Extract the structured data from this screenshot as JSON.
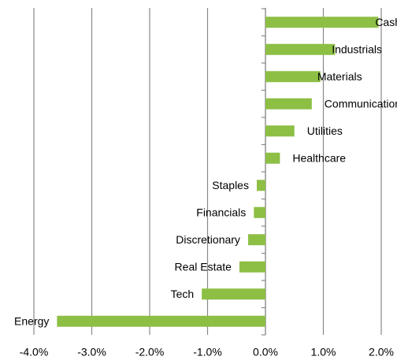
{
  "chart_data": {
    "type": "hbar",
    "categories": [
      "Cash",
      "Industrials",
      "Materials",
      "Communication Services",
      "Utilities",
      "Healthcare",
      "Staples",
      "Financials",
      "Discretionary",
      "Real Estate",
      "Tech",
      "Energy"
    ],
    "values": [
      1.95,
      1.2,
      0.95,
      0.8,
      0.5,
      0.25,
      -0.15,
      -0.2,
      -0.3,
      -0.45,
      -1.1,
      -3.6
    ],
    "color": "#8dbf45",
    "xlim": [
      -4,
      2
    ],
    "xticks": [
      {
        "value": -4,
        "label": "-4.0%"
      },
      {
        "value": -3,
        "label": "-3.0%"
      },
      {
        "value": -2,
        "label": "-2.0%"
      },
      {
        "value": -1,
        "label": "-1.0%"
      },
      {
        "value": 0,
        "label": "0.0%"
      },
      {
        "value": 1,
        "label": "1.0%"
      },
      {
        "value": 2,
        "label": "2.0%"
      }
    ],
    "grid": true
  }
}
